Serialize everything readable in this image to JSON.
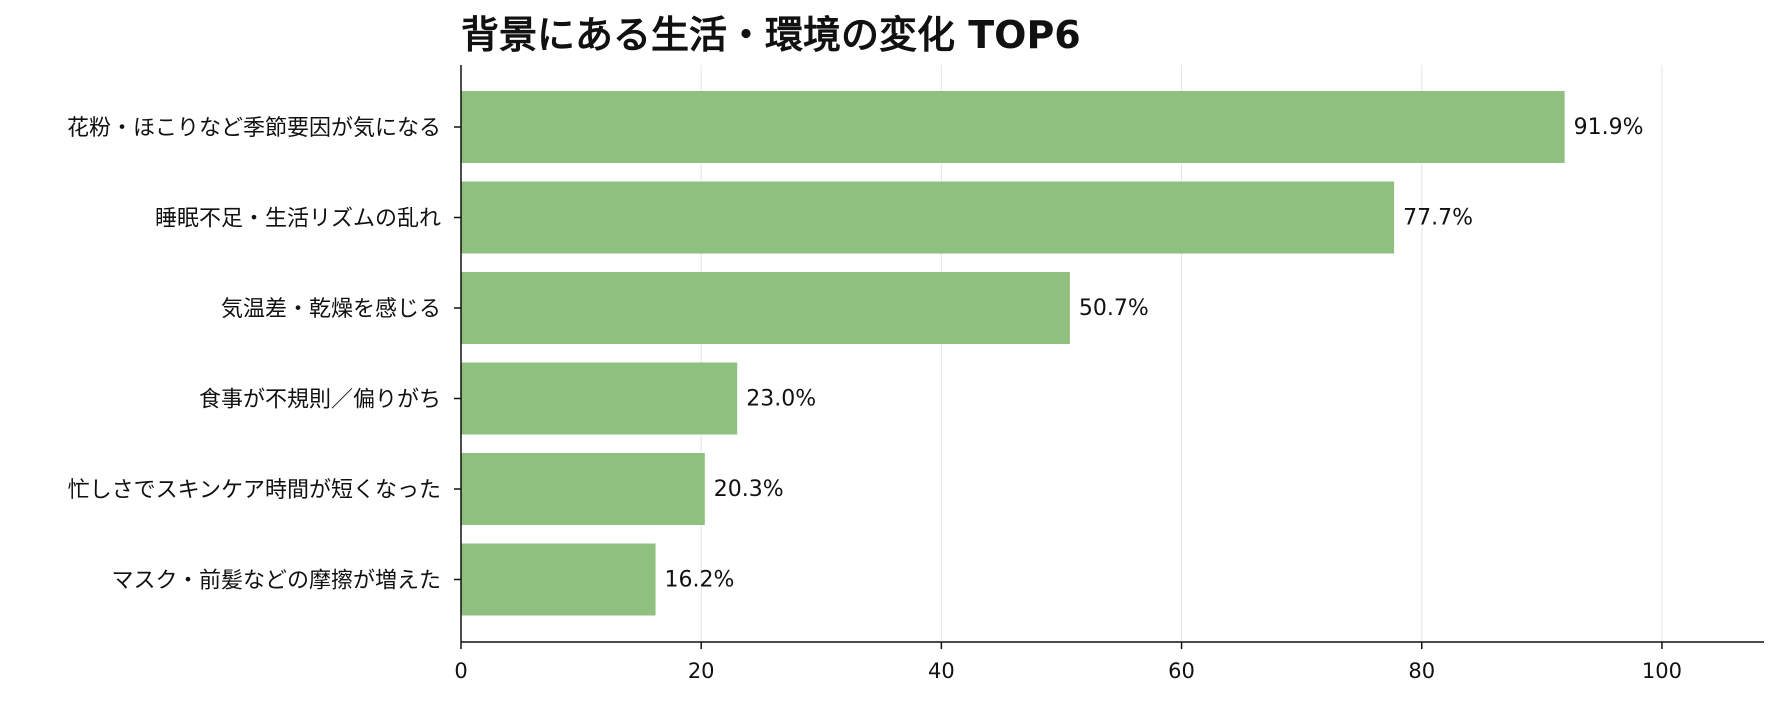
{
  "chart_data": {
    "type": "bar",
    "orientation": "horizontal",
    "title": "背景にある生活・環境の変化 TOP6",
    "categories": [
      "花粉・ほこりなど季節要因が気になる",
      "睡眠不足・生活リズムの乱れ",
      "気温差・乾燥を感じる",
      "食事が不規則／偏りがち",
      "忙しさでスキンケア時間が短くなった",
      "マスク・前髪などの摩擦が増えた"
    ],
    "values": [
      91.9,
      77.7,
      50.7,
      23.0,
      20.3,
      16.2
    ],
    "value_labels": [
      "91.9%",
      "77.7%",
      "50.7%",
      "23.0%",
      "20.3%",
      "16.2%"
    ],
    "xlim": [
      0,
      108.5
    ],
    "x_ticks": [
      0,
      20,
      40,
      60,
      80,
      100
    ],
    "x_tick_labels": [
      "0",
      "20",
      "40",
      "60",
      "80",
      "100"
    ],
    "xlabel": "",
    "ylabel": "",
    "grid": "vertical",
    "bar_color": "#8fc080"
  }
}
